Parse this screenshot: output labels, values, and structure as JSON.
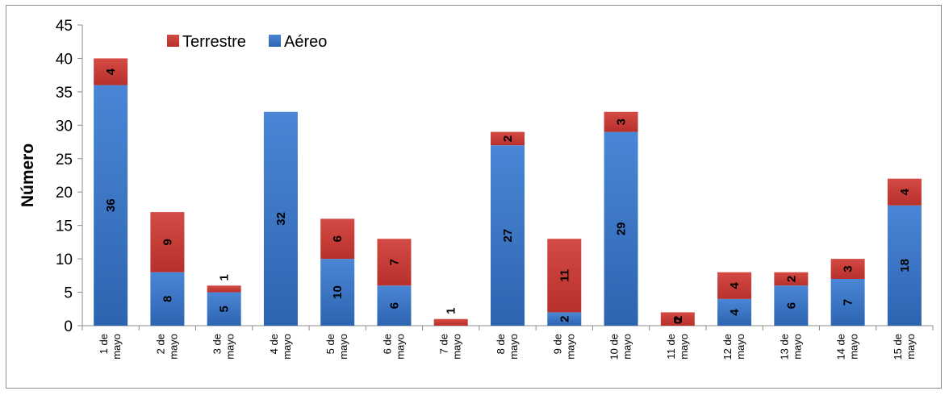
{
  "chart_data": {
    "type": "bar",
    "stacked": true,
    "title": "",
    "xlabel": "",
    "ylabel": "Número",
    "ylim": [
      0,
      45
    ],
    "yticks": [
      0,
      5,
      10,
      15,
      20,
      25,
      30,
      35,
      40,
      45
    ],
    "grid": false,
    "legend_position": "top-left",
    "categories": [
      [
        "1 de",
        "mayo"
      ],
      [
        "2 de",
        "mayo"
      ],
      [
        "3 de",
        "mayo"
      ],
      [
        "4 de",
        "mayo"
      ],
      [
        "5 de",
        "mayo"
      ],
      [
        "6 de",
        "mayo"
      ],
      [
        "7 de",
        "mayo"
      ],
      [
        "8 de",
        "mayo"
      ],
      [
        "9 de",
        "mayo"
      ],
      [
        "10 de",
        "mayo"
      ],
      [
        "11 de",
        "mayo"
      ],
      [
        "12 de",
        "mayo"
      ],
      [
        "13 de",
        "mayo"
      ],
      [
        "14 de",
        "mayo"
      ],
      [
        "15 de",
        "mayo"
      ]
    ],
    "series": [
      {
        "name": "Aéreo",
        "color": "#3a74c4",
        "values": [
          36,
          8,
          5,
          32,
          10,
          6,
          0,
          27,
          2,
          29,
          0,
          4,
          6,
          7,
          18
        ],
        "labels": [
          "36",
          "8",
          "5",
          "32",
          "10",
          "6",
          "",
          "27",
          "2",
          "29",
          "0",
          "4",
          "6",
          "7",
          "18"
        ]
      },
      {
        "name": "Terrestre",
        "color": "#c63a36",
        "values": [
          4,
          9,
          1,
          0,
          6,
          7,
          1,
          2,
          11,
          3,
          2,
          4,
          2,
          3,
          4
        ],
        "labels": [
          "4",
          "9",
          "1",
          "",
          "6",
          "7",
          "1",
          "2",
          "11",
          "3",
          "2",
          "4",
          "2",
          "3",
          "4"
        ]
      }
    ],
    "legend_order": [
      "Terrestre",
      "Aéreo"
    ]
  }
}
